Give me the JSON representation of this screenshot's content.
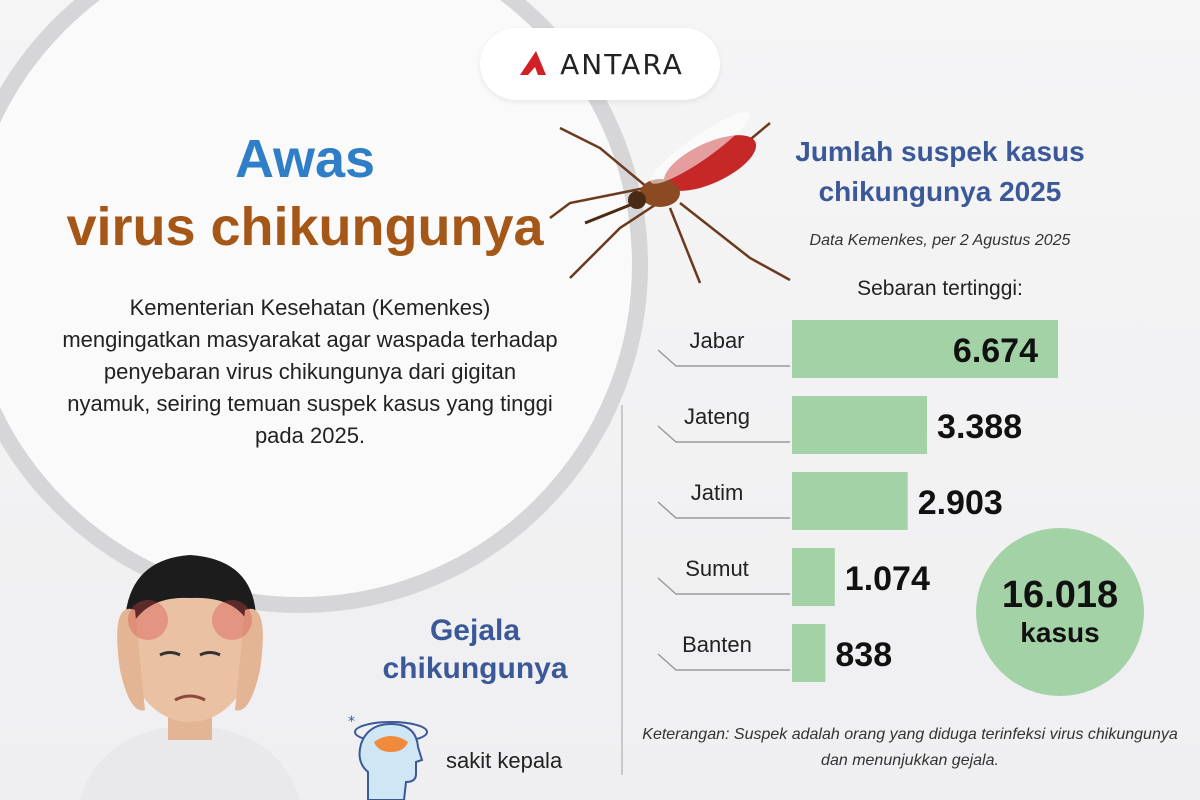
{
  "brand": {
    "name": "ANTARA",
    "accent": "#d32027"
  },
  "headline": {
    "line1": "Awas",
    "line2": "virus chikungunya",
    "line1_color": "#2e7fc7",
    "line2_color": "#a55717"
  },
  "intro": "Kementerian Kesehatan (Kemenkes) mengingatkan masyarakat agar waspada terhadap penyebaran virus chikungunya dari gigitan nyamuk, seiring temuan suspek kasus yang tinggi pada 2025.",
  "chart_data": {
    "type": "bar",
    "orientation": "horizontal",
    "title": "Jumlah suspek kasus chikungunya 2025",
    "subtitle": "Data Kemenkes, per 2 Agustus 2025",
    "heading": "Sebaran tertinggi:",
    "categories": [
      "Jabar",
      "Jateng",
      "Jatim",
      "Sumut",
      "Banten"
    ],
    "values": [
      6674,
      3388,
      2903,
      1074,
      838
    ],
    "value_labels": [
      "6.674",
      "3.388",
      "2.903",
      "1.074",
      "838"
    ],
    "bar_color": "#a3d2a7",
    "grid": false,
    "legend": "none"
  },
  "total": {
    "value": "16.018",
    "unit": "kasus"
  },
  "note": "Keterangan: Suspek adalah orang yang diduga terinfeksi virus chikungunya dan menunjukkan gejala.",
  "symptoms": {
    "title": "Gejala chikungunya",
    "items": [
      {
        "label": "sakit kepala",
        "icon": "headache-icon"
      }
    ]
  },
  "illustrations": {
    "mosquito": "mosquito-icon",
    "person": "person-headache-icon"
  }
}
